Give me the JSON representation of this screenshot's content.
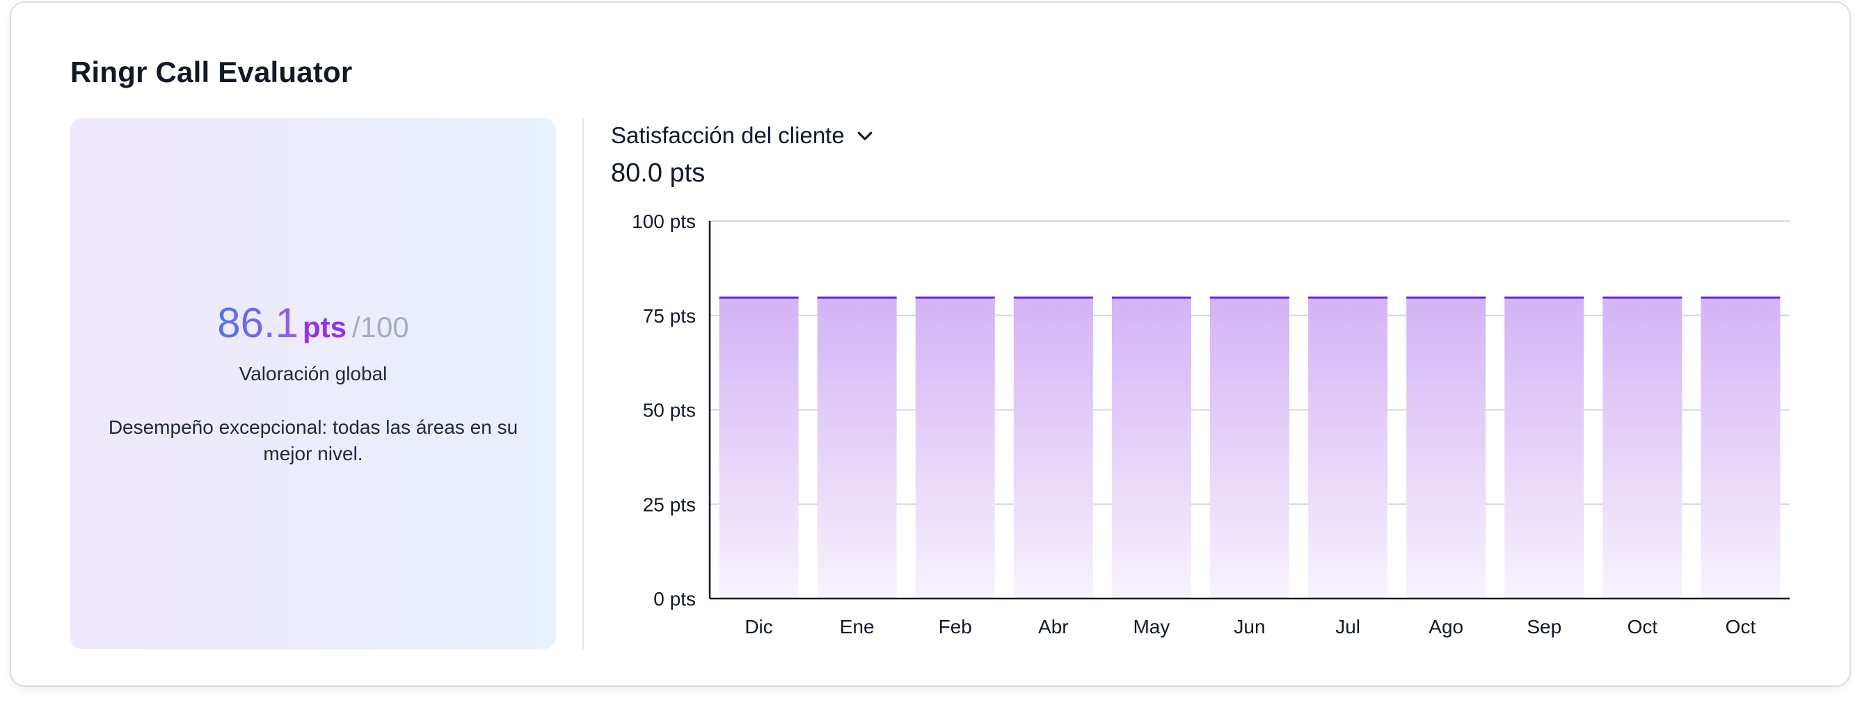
{
  "app": {
    "title": "Ringr Call Evaluator"
  },
  "overall": {
    "value": "86.1",
    "unit": "pts",
    "max": "/100",
    "label": "Valoración global",
    "description": "Desempeño excepcional: todas las áreas en su mejor nivel."
  },
  "metric": {
    "selected": "Satisfacción del cliente",
    "value": "80.0 pts",
    "dropdown_icon": "chevron-down-icon"
  },
  "colors": {
    "bar_top": "#d3b3f6",
    "bar_bottom": "#f8f3fd",
    "bar_cap": "#6d28d9",
    "score_gradient_start": "#4f74e8",
    "score_gradient_end": "#9b59ea",
    "score_unit": "#9233ea"
  },
  "chart_data": {
    "type": "bar",
    "categories": [
      "Dic",
      "Ene",
      "Feb",
      "Abr",
      "May",
      "Jun",
      "Jul",
      "Ago",
      "Sep",
      "Oct",
      "Oct"
    ],
    "values": [
      80,
      80,
      80,
      80,
      80,
      80,
      80,
      80,
      80,
      80,
      80
    ],
    "ylim": [
      0,
      100
    ],
    "yticks": [
      0,
      25,
      50,
      75,
      100
    ],
    "ytick_labels": [
      "0 pts",
      "25 pts",
      "50 pts",
      "75 pts",
      "100 pts"
    ],
    "title": "",
    "xlabel": "",
    "ylabel": "",
    "grid": true,
    "legend": "none"
  }
}
